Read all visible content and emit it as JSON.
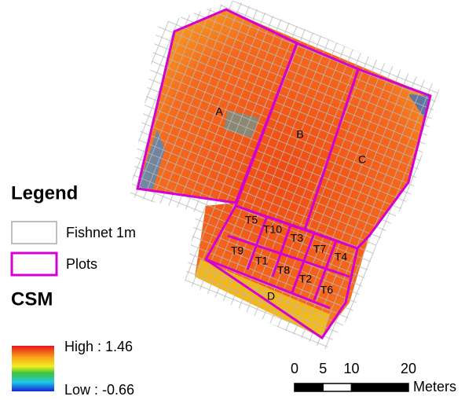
{
  "legend": {
    "title": "Legend",
    "items": [
      "Fishnet 1m",
      "Plots"
    ]
  },
  "raster": {
    "name": "CSM",
    "high_label": "High : 1.46",
    "low_label": "Low : -0.66"
  },
  "plots": [
    "A",
    "B",
    "C",
    "D",
    "T1",
    "T2",
    "T3",
    "T4",
    "T5",
    "T6",
    "T7",
    "T8",
    "T9",
    "T10"
  ],
  "scalebar": {
    "ticks": [
      0,
      5,
      10,
      20
    ],
    "unit": "Meters"
  }
}
